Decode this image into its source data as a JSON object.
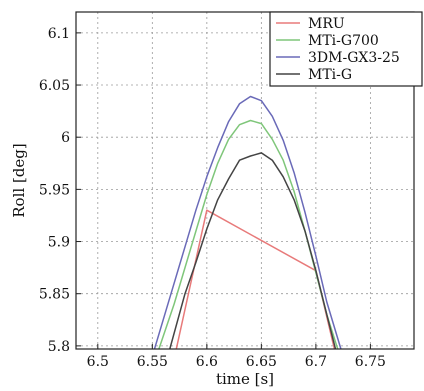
{
  "chart_data": {
    "type": "line",
    "title": "",
    "xlabel": "time [s]",
    "ylabel": "Roll [deg]",
    "xlim": [
      6.48,
      6.79
    ],
    "ylim": [
      5.797,
      6.12
    ],
    "xticks": [
      6.5,
      6.55,
      6.6,
      6.65,
      6.7,
      6.75
    ],
    "yticks": [
      5.8,
      5.85,
      5.9,
      5.95,
      6.0,
      6.05,
      6.1
    ],
    "xtick_labels": [
      "6.5",
      "6.55",
      "6.6",
      "6.65",
      "6.7",
      "6.75"
    ],
    "ytick_labels": [
      "5.8",
      "5.85",
      "5.9",
      "5.95",
      "6",
      "6.05",
      "6.1"
    ],
    "grid": true,
    "legend_position": "top-right",
    "series": [
      {
        "name": "MRU",
        "color": "#e87a7a",
        "x": [
          6.572,
          6.6,
          6.7,
          6.717
        ],
        "y": [
          5.797,
          5.93,
          5.872,
          5.797
        ]
      },
      {
        "name": "MTi-G700",
        "color": "#7fc67a",
        "x": [
          6.556,
          6.57,
          6.58,
          6.59,
          6.6,
          6.61,
          6.62,
          6.63,
          6.64,
          6.65,
          6.66,
          6.67,
          6.68,
          6.69,
          6.7,
          6.71,
          6.72
        ],
        "y": [
          5.797,
          5.84,
          5.875,
          5.91,
          5.945,
          5.975,
          5.998,
          6.012,
          6.016,
          6.013,
          5.998,
          5.978,
          5.948,
          5.91,
          5.87,
          5.83,
          5.797
        ]
      },
      {
        "name": "3DM-GX3-25",
        "color": "#6a6ab8",
        "x": [
          6.552,
          6.56,
          6.57,
          6.58,
          6.59,
          6.6,
          6.61,
          6.62,
          6.63,
          6.64,
          6.65,
          6.66,
          6.67,
          6.68,
          6.69,
          6.7,
          6.71,
          6.723
        ],
        "y": [
          5.797,
          5.825,
          5.86,
          5.895,
          5.93,
          5.962,
          5.99,
          6.015,
          6.032,
          6.039,
          6.035,
          6.02,
          5.997,
          5.966,
          5.928,
          5.886,
          5.842,
          5.797
        ]
      },
      {
        "name": "MTi-G",
        "color": "#444444",
        "x": [
          6.566,
          6.58,
          6.59,
          6.6,
          6.61,
          6.62,
          6.63,
          6.64,
          6.65,
          6.66,
          6.67,
          6.68,
          6.69,
          6.7,
          6.71,
          6.718
        ],
        "y": [
          5.797,
          5.85,
          5.88,
          5.912,
          5.94,
          5.96,
          5.978,
          5.982,
          5.985,
          5.978,
          5.962,
          5.94,
          5.91,
          5.872,
          5.83,
          5.797
        ]
      }
    ]
  }
}
